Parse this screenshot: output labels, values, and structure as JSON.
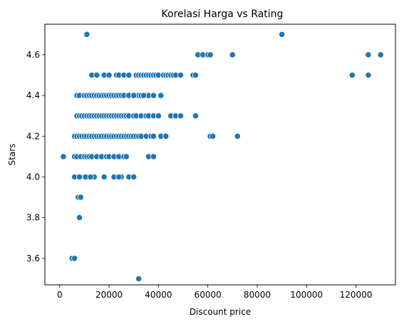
{
  "chart_data": {
    "type": "scatter",
    "title": "Korelasi Harga vs Rating",
    "xlabel": "Discount price",
    "ylabel": "Stars",
    "xlim": [
      -6000,
      136000
    ],
    "ylim": [
      3.47,
      4.75
    ],
    "xticks": [
      0,
      20000,
      40000,
      60000,
      80000,
      100000,
      120000
    ],
    "xtick_labels": [
      "0",
      "20000",
      "40000",
      "60000",
      "80000",
      "100000",
      "120000"
    ],
    "yticks": [
      3.6,
      3.8,
      4.0,
      4.2,
      4.4,
      4.6
    ],
    "ytick_labels": [
      "3.6",
      "3.8",
      "4.0",
      "4.2",
      "4.4",
      "4.6"
    ],
    "grid": false,
    "legend": "none",
    "marker_color": "#1f77b4",
    "series": [
      {
        "x": [
          1500,
          5000,
          6000,
          32000,
          8000,
          7500,
          8500,
          11000,
          90000,
          56000,
          58000,
          60000,
          61000,
          70000,
          125000,
          130000,
          118500,
          125000,
          54000,
          55000,
          55000,
          61000,
          62000,
          72000,
          6500,
          8000,
          10000,
          12000,
          14000,
          18000,
          22000,
          25000,
          28000,
          30000,
          6000,
          8000,
          10500,
          12500,
          22000,
          24000,
          6000,
          7000,
          8500,
          10000,
          11000,
          12000,
          13000,
          15000,
          17000,
          19000,
          20000,
          22000,
          24000,
          26000,
          27000,
          36000,
          38000,
          6000,
          7000,
          8000,
          9000,
          10000,
          11000,
          12000,
          13000,
          14000,
          15000,
          16000,
          17000,
          18000,
          19000,
          20000,
          21000,
          22000,
          23000,
          24000,
          25000,
          26000,
          27000,
          28000,
          29000,
          30000,
          31000,
          32000,
          33000,
          35000,
          37000,
          38000,
          41000,
          43000,
          7000,
          8000,
          9000,
          10000,
          11000,
          12000,
          13000,
          14000,
          15000,
          16000,
          17000,
          18000,
          19000,
          20000,
          21000,
          22000,
          23000,
          24000,
          25000,
          26000,
          27000,
          28000,
          30000,
          31000,
          33000,
          35000,
          36000,
          38000,
          40000,
          45000,
          47000,
          49000,
          55000,
          7000,
          8000,
          10000,
          11000,
          12000,
          13000,
          14000,
          15000,
          16000,
          17000,
          18000,
          19000,
          20000,
          21000,
          22000,
          23000,
          24000,
          25000,
          26000,
          28000,
          30000,
          31000,
          32000,
          33000,
          34000,
          35000,
          36000,
          41000,
          13000,
          15000,
          18000,
          20000,
          23000,
          24000,
          26000,
          28000,
          31000,
          32000,
          33000,
          34000,
          35000,
          36000,
          37000,
          38000,
          39000,
          40000,
          42000,
          43000,
          44000,
          45000,
          46000,
          47000,
          49000,
          30000,
          34000,
          38000
        ],
        "y": [
          4.1,
          3.6,
          3.6,
          3.5,
          3.8,
          3.9,
          3.9,
          4.7,
          4.7,
          4.6,
          4.6,
          4.6,
          4.6,
          4.6,
          4.6,
          4.6,
          4.5,
          4.5,
          4.5,
          4.5,
          4.3,
          4.2,
          4.2,
          4.2,
          4.0,
          4.0,
          4.0,
          4.0,
          4.0,
          4.0,
          4.0,
          4.0,
          4.0,
          4.0,
          4.0,
          4.0,
          4.0,
          4.0,
          4.0,
          4.0,
          4.1,
          4.1,
          4.1,
          4.1,
          4.1,
          4.1,
          4.1,
          4.1,
          4.1,
          4.1,
          4.1,
          4.1,
          4.1,
          4.1,
          4.1,
          4.1,
          4.1,
          4.2,
          4.2,
          4.2,
          4.2,
          4.2,
          4.2,
          4.2,
          4.2,
          4.2,
          4.2,
          4.2,
          4.2,
          4.2,
          4.2,
          4.2,
          4.2,
          4.2,
          4.2,
          4.2,
          4.2,
          4.2,
          4.2,
          4.2,
          4.2,
          4.2,
          4.2,
          4.2,
          4.2,
          4.2,
          4.2,
          4.2,
          4.2,
          4.2,
          4.3,
          4.3,
          4.3,
          4.3,
          4.3,
          4.3,
          4.3,
          4.3,
          4.3,
          4.3,
          4.3,
          4.3,
          4.3,
          4.3,
          4.3,
          4.3,
          4.3,
          4.3,
          4.3,
          4.3,
          4.3,
          4.3,
          4.3,
          4.3,
          4.3,
          4.3,
          4.3,
          4.3,
          4.3,
          4.3,
          4.3,
          4.3,
          4.3,
          4.4,
          4.4,
          4.4,
          4.4,
          4.4,
          4.4,
          4.4,
          4.4,
          4.4,
          4.4,
          4.4,
          4.4,
          4.4,
          4.4,
          4.4,
          4.4,
          4.4,
          4.4,
          4.4,
          4.4,
          4.4,
          4.4,
          4.4,
          4.4,
          4.4,
          4.4,
          4.4,
          4.4,
          4.5,
          4.5,
          4.5,
          4.5,
          4.5,
          4.5,
          4.5,
          4.5,
          4.5,
          4.5,
          4.5,
          4.5,
          4.5,
          4.5,
          4.5,
          4.5,
          4.5,
          4.5,
          4.5,
          4.5,
          4.5,
          4.5,
          4.5,
          4.5,
          4.5,
          4.4,
          4.4,
          4.4
        ]
      }
    ]
  }
}
